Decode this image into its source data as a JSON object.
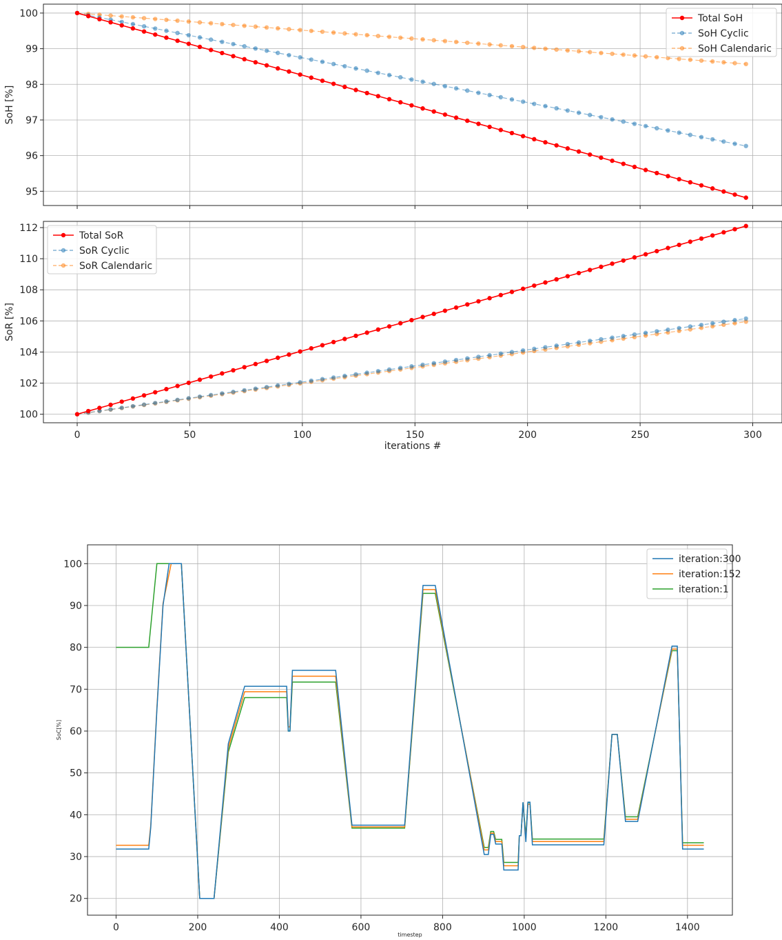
{
  "chart_data": [
    {
      "type": "line",
      "xlabel": "",
      "ylabel": "SoH [%]",
      "xlim": [
        -15,
        313
      ],
      "ylim": [
        94.6,
        100.25
      ],
      "xticks": [
        0,
        50,
        100,
        150,
        200,
        250,
        300
      ],
      "yticks": [
        95,
        96,
        97,
        98,
        99,
        100
      ],
      "grid": true,
      "legend_position": "top-right",
      "x": {
        "start": 0,
        "end": 297,
        "count": 61
      },
      "series": [
        {
          "name": "Total SoH",
          "color": "#ff0000",
          "style": "solid",
          "marker": "circle",
          "y_start": 100.0,
          "y_end": 94.82
        },
        {
          "name": "SoH Cyclic",
          "color": "#1f77b4",
          "style": "dashed",
          "marker": "circle",
          "y_start": 100.0,
          "y_end": 96.27
        },
        {
          "name": "SoH Calendaric",
          "color": "#ff7f0e",
          "style": "dashed",
          "marker": "circle",
          "y_start": 100.0,
          "y_end": 98.57
        }
      ]
    },
    {
      "type": "line",
      "xlabel": "iterations #",
      "ylabel": "SoR [%]",
      "xlim": [
        -15,
        313
      ],
      "ylim": [
        99.45,
        112.4
      ],
      "xticks": [
        0,
        50,
        100,
        150,
        200,
        250,
        300
      ],
      "yticks": [
        100,
        102,
        104,
        106,
        108,
        110,
        112
      ],
      "grid": true,
      "legend_position": "top-left",
      "x": {
        "start": 0,
        "end": 297,
        "count": 61
      },
      "series": [
        {
          "name": "Total SoR",
          "color": "#ff0000",
          "style": "solid",
          "marker": "circle",
          "y_start": 100.0,
          "y_end": 112.1
        },
        {
          "name": "SoR Cyclic",
          "color": "#1f77b4",
          "style": "dashed",
          "marker": "circle",
          "y_start": 100.0,
          "y_end": 106.15
        },
        {
          "name": "SoR Calendaric",
          "color": "#ff7f0e",
          "style": "dashed",
          "marker": "circle",
          "y_start": 100.0,
          "y_end": 105.95
        }
      ]
    },
    {
      "type": "line",
      "xlabel": "timestep",
      "ylabel": "SoC[%]",
      "xlim": [
        -70,
        1510
      ],
      "ylim": [
        16,
        104.5
      ],
      "xticks": [
        0,
        200,
        400,
        600,
        800,
        1000,
        1200,
        1400
      ],
      "yticks": [
        20,
        30,
        40,
        50,
        60,
        70,
        80,
        90,
        100
      ],
      "grid": true,
      "legend_position": "top-right",
      "series": [
        {
          "name": "iteration:300",
          "color": "#1f77b4",
          "points": [
            [
              0,
              31.8
            ],
            [
              80,
              31.8
            ],
            [
              85,
              37
            ],
            [
              100,
              65
            ],
            [
              115,
              90
            ],
            [
              130,
              100
            ],
            [
              160,
              100
            ],
            [
              205,
              20
            ],
            [
              240,
              20
            ],
            [
              275,
              57
            ],
            [
              315,
              70.7
            ],
            [
              418,
              70.7
            ],
            [
              422,
              60
            ],
            [
              426,
              60
            ],
            [
              432,
              74.5
            ],
            [
              538,
              74.5
            ],
            [
              578,
              37.5
            ],
            [
              707,
              37.5
            ],
            [
              752,
              94.8
            ],
            [
              782,
              94.8
            ],
            [
              902,
              30.5
            ],
            [
              912,
              30.5
            ],
            [
              918,
              35.3
            ],
            [
              925,
              35.3
            ],
            [
              930,
              33
            ],
            [
              945,
              33
            ],
            [
              950,
              26.8
            ],
            [
              985,
              26.8
            ],
            [
              988,
              35
            ],
            [
              992,
              35
            ],
            [
              997,
              43
            ],
            [
              1004,
              33.5
            ],
            [
              1009,
              43
            ],
            [
              1014,
              43
            ],
            [
              1020,
              32.8
            ],
            [
              1195,
              32.8
            ],
            [
              1215,
              59.2
            ],
            [
              1228,
              59.2
            ],
            [
              1248,
              38.4
            ],
            [
              1278,
              38.4
            ],
            [
              1362,
              80.3
            ],
            [
              1375,
              80.3
            ],
            [
              1388,
              31.8
            ],
            [
              1440,
              31.8
            ]
          ]
        },
        {
          "name": "iteration:152",
          "color": "#ff7f0e",
          "points": [
            [
              0,
              32.7
            ],
            [
              80,
              32.7
            ],
            [
              85,
              37.5
            ],
            [
              100,
              65.5
            ],
            [
              115,
              90.5
            ],
            [
              135,
              100
            ],
            [
              160,
              100
            ],
            [
              205,
              20
            ],
            [
              240,
              20
            ],
            [
              275,
              56
            ],
            [
              315,
              69.4
            ],
            [
              418,
              69.4
            ],
            [
              422,
              61
            ],
            [
              426,
              61
            ],
            [
              432,
              73.1
            ],
            [
              538,
              73.1
            ],
            [
              578,
              37.1
            ],
            [
              707,
              37.1
            ],
            [
              752,
              93.8
            ],
            [
              782,
              93.8
            ],
            [
              902,
              31.6
            ],
            [
              912,
              31.6
            ],
            [
              918,
              35.6
            ],
            [
              925,
              35.6
            ],
            [
              930,
              33.6
            ],
            [
              945,
              33.6
            ],
            [
              950,
              27.8
            ],
            [
              985,
              27.8
            ],
            [
              988,
              35
            ],
            [
              992,
              35
            ],
            [
              997,
              42.5
            ],
            [
              1004,
              34.2
            ],
            [
              1009,
              42.5
            ],
            [
              1014,
              42.5
            ],
            [
              1020,
              33.6
            ],
            [
              1195,
              33.6
            ],
            [
              1215,
              59.2
            ],
            [
              1228,
              59.2
            ],
            [
              1248,
              38.9
            ],
            [
              1278,
              38.9
            ],
            [
              1362,
              79.6
            ],
            [
              1375,
              79.6
            ],
            [
              1388,
              32.7
            ],
            [
              1440,
              32.7
            ]
          ]
        },
        {
          "name": "iteration:1",
          "color": "#2ca02c",
          "points": [
            [
              0,
              80
            ],
            [
              80,
              80
            ],
            [
              90,
              90
            ],
            [
              100,
              100
            ],
            [
              160,
              100
            ],
            [
              205,
              20
            ],
            [
              240,
              20
            ],
            [
              275,
              55
            ],
            [
              315,
              68
            ],
            [
              418,
              68
            ],
            [
              422,
              60
            ],
            [
              426,
              60
            ],
            [
              432,
              71.7
            ],
            [
              538,
              71.7
            ],
            [
              578,
              36.8
            ],
            [
              707,
              36.8
            ],
            [
              752,
              92.9
            ],
            [
              782,
              92.9
            ],
            [
              902,
              32.2
            ],
            [
              912,
              32.2
            ],
            [
              918,
              36
            ],
            [
              925,
              36
            ],
            [
              930,
              34.1
            ],
            [
              945,
              34.1
            ],
            [
              950,
              28.6
            ],
            [
              985,
              28.6
            ],
            [
              988,
              35
            ],
            [
              992,
              35
            ],
            [
              997,
              42.9
            ],
            [
              1004,
              34.9
            ],
            [
              1009,
              42.9
            ],
            [
              1014,
              42.9
            ],
            [
              1020,
              34.2
            ],
            [
              1195,
              34.2
            ],
            [
              1215,
              59.2
            ],
            [
              1228,
              59.2
            ],
            [
              1248,
              39.5
            ],
            [
              1278,
              39.5
            ],
            [
              1362,
              79.2
            ],
            [
              1375,
              79.2
            ],
            [
              1388,
              33.3
            ],
            [
              1440,
              33.3
            ]
          ]
        }
      ]
    }
  ]
}
